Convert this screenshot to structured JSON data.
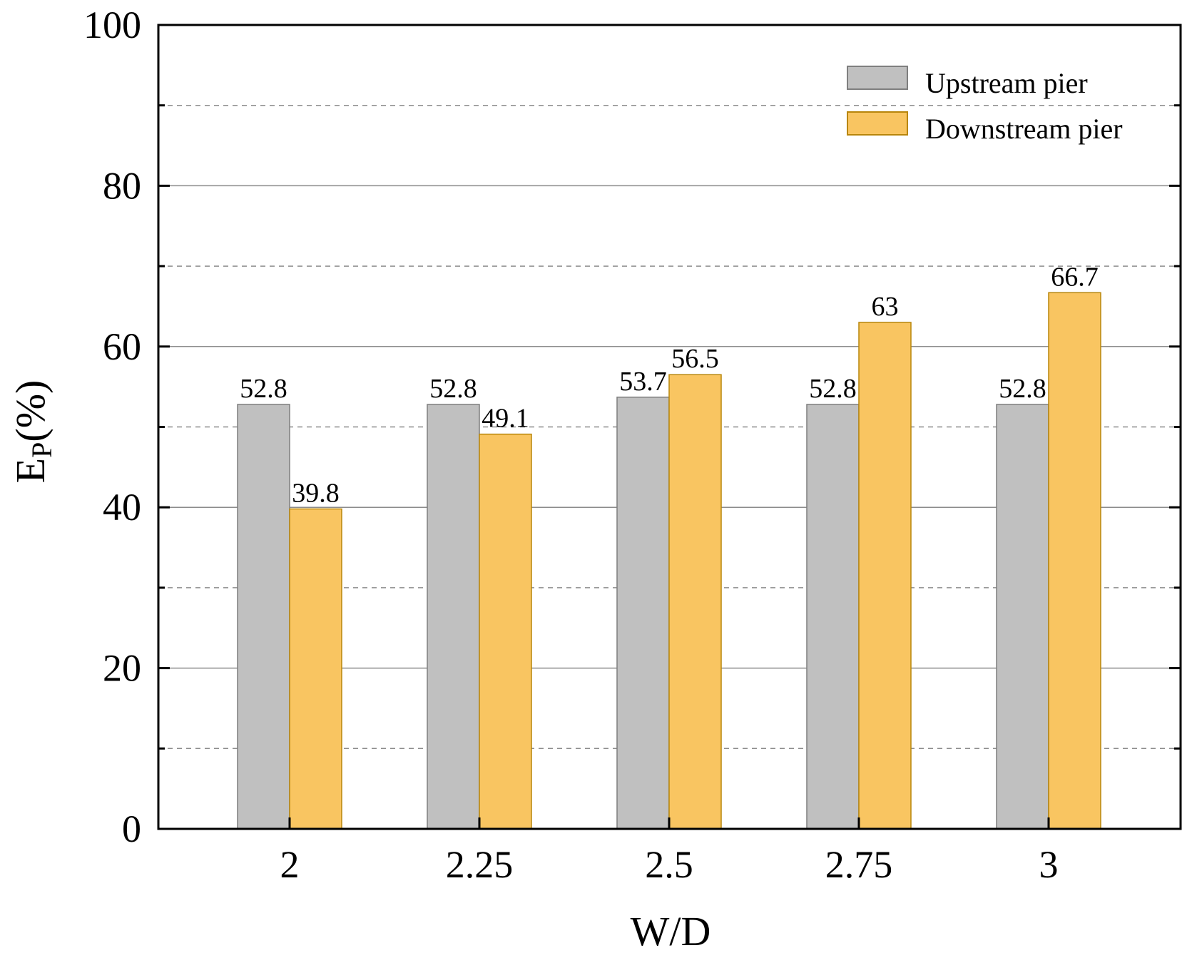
{
  "chart_data": {
    "type": "bar",
    "categories": [
      "2",
      "2.25",
      "2.5",
      "2.75",
      "3"
    ],
    "series": [
      {
        "name": "Upstream pier",
        "values": [
          52.8,
          52.8,
          53.7,
          52.8,
          52.8
        ],
        "color": "#c0c0c0",
        "stroke": "#7f7f7f"
      },
      {
        "name": "Downstream pier",
        "values": [
          39.8,
          49.1,
          56.5,
          63,
          66.7
        ],
        "color": "#f9c561",
        "stroke": "#b8860b"
      }
    ],
    "data_labels": [
      [
        "52.8",
        "52.8",
        "53.7",
        "52.8",
        "52.8"
      ],
      [
        "39.8",
        "49.1",
        "56.5",
        "63",
        "66.7"
      ]
    ],
    "xlabel": "W/D",
    "ylabel": {
      "main": "E",
      "sub": "P",
      "suffix": "(%)"
    },
    "ylim": [
      0,
      100
    ],
    "yticks": [
      "0",
      "20",
      "40",
      "60",
      "80",
      "100"
    ],
    "major_grid": [
      20,
      40,
      60,
      80
    ],
    "minor_grid": [
      10,
      30,
      50,
      70,
      90
    ],
    "legend_position": "top-right"
  }
}
